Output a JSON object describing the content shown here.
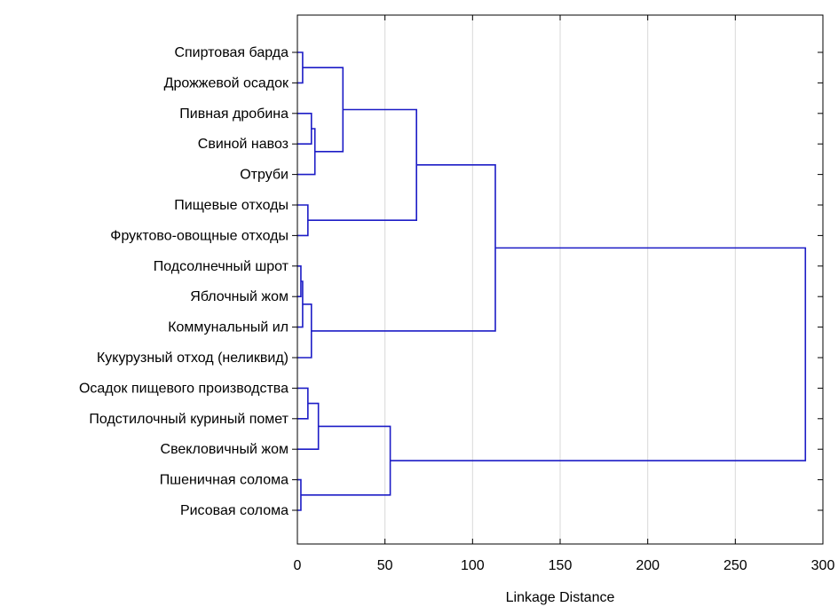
{
  "chart_data": {
    "type": "dendrogram",
    "orientation": "horizontal",
    "xlabel": "Linkage Distance",
    "xlim": [
      0,
      300
    ],
    "x_ticks": [
      0,
      50,
      100,
      150,
      200,
      250,
      300
    ],
    "grid": "vertical",
    "line_color": "#1c1cc6",
    "leaves": [
      "Спиртовая барда",
      "Дрожжевой осадок",
      "Пивная дробина",
      "Свиной навоз",
      "Отруби",
      "Пищевые отходы",
      "Фруктово-овощные отходы",
      "Подсолнечный шрот",
      "Яблочный жом",
      "Коммунальный ил",
      "Кукурузный отход (неликвид)",
      "Осадок пищевого производства",
      "Подстилочный куриный помет",
      "Свекловичный жом",
      "Пшеничная солома",
      "Рисовая солома"
    ],
    "merges": [
      {
        "id": "A",
        "left": "Пивная дробина",
        "right": "Свиной навоз",
        "height": 8
      },
      {
        "id": "B",
        "left": "A",
        "right": "Отруби",
        "height": 10
      },
      {
        "id": "C",
        "left": "Спиртовая барда",
        "right": "Дрожжевой осадок",
        "height": 3
      },
      {
        "id": "D",
        "left": "C",
        "right": "B",
        "height": 26
      },
      {
        "id": "E",
        "left": "Пищевые отходы",
        "right": "Фруктово-овощные отходы",
        "height": 6
      },
      {
        "id": "F",
        "left": "D",
        "right": "E",
        "height": 68
      },
      {
        "id": "G",
        "left": "Подсолнечный шрот",
        "right": "Яблочный жом",
        "height": 2
      },
      {
        "id": "H",
        "left": "G",
        "right": "Коммунальный ил",
        "height": 3
      },
      {
        "id": "I",
        "left": "H",
        "right": "Кукурузный отход (неликвид)",
        "height": 8
      },
      {
        "id": "J",
        "left": "F",
        "right": "I",
        "height": 113
      },
      {
        "id": "K",
        "left": "Осадок пищевого производства",
        "right": "Подстилочный куриный помет",
        "height": 6
      },
      {
        "id": "L",
        "left": "K",
        "right": "Свекловичный жом",
        "height": 12
      },
      {
        "id": "M",
        "left": "Пшеничная солома",
        "right": "Рисовая солома",
        "height": 2
      },
      {
        "id": "N",
        "left": "L",
        "right": "M",
        "height": 53
      },
      {
        "id": "O",
        "left": "J",
        "right": "N",
        "height": 290
      }
    ]
  }
}
